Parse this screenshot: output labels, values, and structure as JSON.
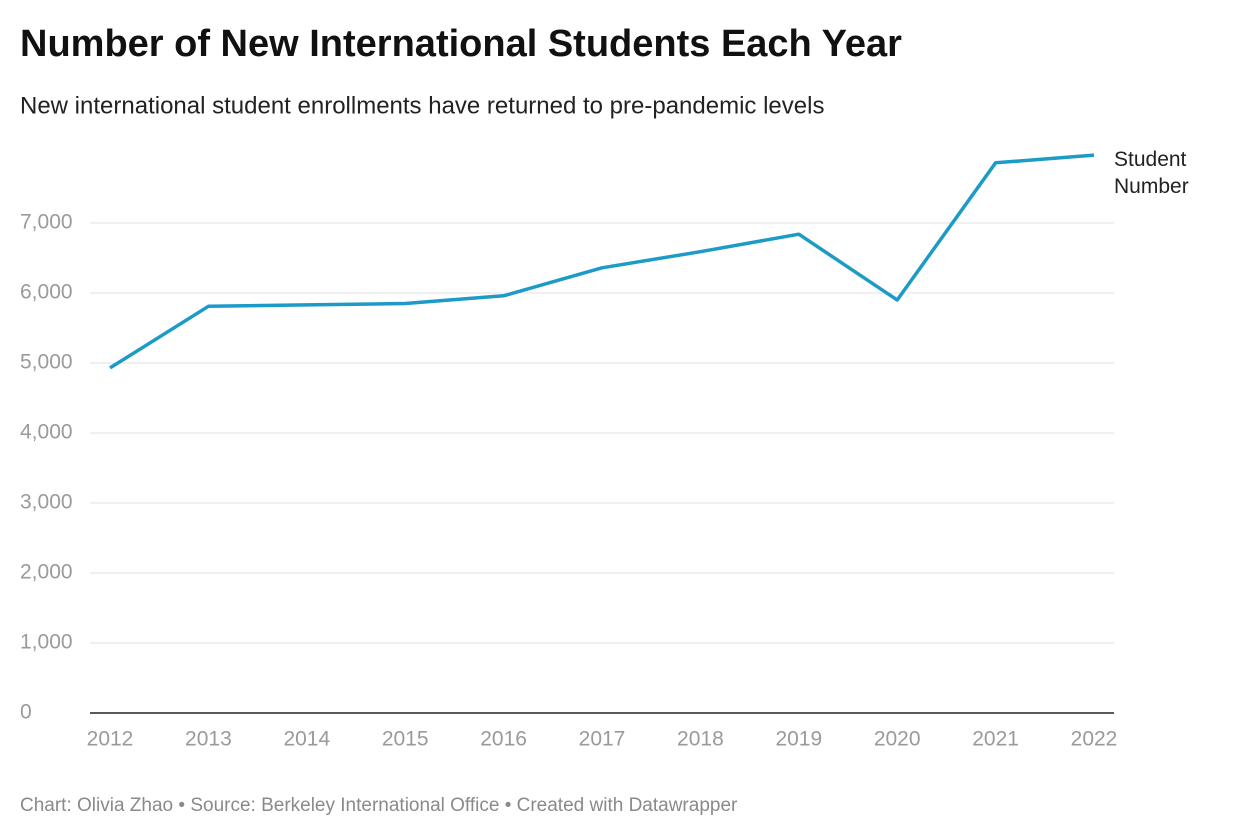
{
  "chart_data": {
    "type": "line",
    "title": "Number of New International Students Each Year",
    "subtitle": "New international student enrollments have returned to pre-pandemic levels",
    "categories": [
      "2012",
      "2013",
      "2014",
      "2015",
      "2016",
      "2017",
      "2018",
      "2019",
      "2020",
      "2021",
      "2022"
    ],
    "series": [
      {
        "name": "Student Number",
        "color": "#1d9bc7",
        "values": [
          4930,
          5810,
          5830,
          5850,
          5960,
          6360,
          6590,
          6840,
          5900,
          7860,
          7970
        ]
      }
    ],
    "ylim": [
      0,
      8000
    ],
    "yticks": [
      0,
      {
        "value": 1000,
        "label": "1,000"
      },
      {
        "value": 2000,
        "label": "2,000"
      },
      {
        "value": 3000,
        "label": "3,000"
      },
      {
        "value": 4000,
        "label": "4,000"
      },
      {
        "value": 5000,
        "label": "5,000"
      },
      {
        "value": 6000,
        "label": "6,000"
      },
      {
        "value": 7000,
        "label": "7,000"
      }
    ],
    "grid": true,
    "footer": "Chart: Olivia Zhao • Source: Berkeley International Office • Created with Datawrapper"
  }
}
